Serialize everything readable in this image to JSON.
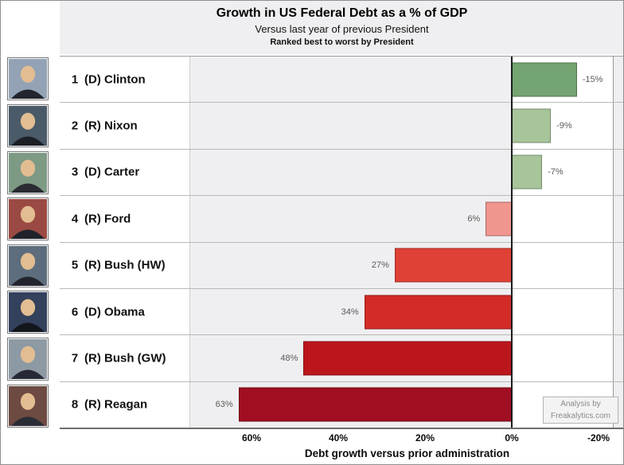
{
  "header": {
    "title": "Growth in US Federal Debt as a % of GDP",
    "subtitle": "Versus last year of previous President",
    "subsubtitle": "Ranked best to worst by President"
  },
  "chart_data": {
    "type": "bar",
    "orientation": "horizontal",
    "title": "Growth in US Federal Debt as a % of GDP",
    "subtitle": "Versus last year of previous President",
    "note": "Ranked best to worst by President",
    "categories": [
      "(D) Clinton",
      "(R) Nixon",
      "(D) Carter",
      "(R) Ford",
      "(R) Bush (HW)",
      "(D) Obama",
      "(R) Bush (GW)",
      "(R) Reagan"
    ],
    "ranks": [
      1,
      2,
      3,
      4,
      5,
      6,
      7,
      8
    ],
    "values": [
      -15,
      -9,
      -7,
      6,
      27,
      34,
      48,
      63
    ],
    "value_labels": [
      "-15%",
      "-9%",
      "-7%",
      "6%",
      "27%",
      "34%",
      "48%",
      "63%"
    ],
    "xlabel": "Debt growth versus prior administration",
    "ylabel": "",
    "x_axis": {
      "ticks": [
        "60%",
        "40%",
        "20%",
        "0%",
        "-20%"
      ],
      "tick_values": [
        60,
        40,
        20,
        0,
        -20
      ],
      "reversed": true,
      "xlim": [
        74,
        -24
      ]
    },
    "legend": "none",
    "grid": "row-separators-only",
    "palette_note": "green = debt reduced vs prior administration, red = debt grew"
  },
  "rows": [
    {
      "rank": "1",
      "name": "(D) Clinton",
      "value": -15,
      "label": "-15%",
      "color": "#74a471",
      "portrait_bg": "#93a3b5",
      "suit": "#23252e"
    },
    {
      "rank": "2",
      "name": "(R) Nixon",
      "value": -9,
      "label": "-9%",
      "color": "#a7c49a",
      "portrait_bg": "#4a5a68",
      "suit": "#1d1f26"
    },
    {
      "rank": "3",
      "name": "(D) Carter",
      "value": -7,
      "label": "-7%",
      "color": "#a7c49a",
      "portrait_bg": "#7d9a84",
      "suit": "#2a2c33"
    },
    {
      "rank": "4",
      "name": "(R) Ford",
      "value": 6,
      "label": "6%",
      "color": "#f0968e",
      "portrait_bg": "#9a4a42",
      "suit": "#20222b"
    },
    {
      "rank": "5",
      "name": "(R) Bush (HW)",
      "value": 27,
      "label": "27%",
      "color": "#e04136",
      "portrait_bg": "#5d6d7d",
      "suit": "#23252e"
    },
    {
      "rank": "6",
      "name": "(D) Obama",
      "value": 34,
      "label": "34%",
      "color": "#d22b28",
      "portrait_bg": "#33415c",
      "suit": "#14161d"
    },
    {
      "rank": "7",
      "name": "(R) Bush (GW)",
      "value": 48,
      "label": "48%",
      "color": "#bc161d",
      "portrait_bg": "#8d9aa4",
      "suit": "#262833"
    },
    {
      "rank": "8",
      "name": "(R) Reagan",
      "value": 63,
      "label": "63%",
      "color": "#a00e22",
      "portrait_bg": "#6d4a42",
      "suit": "#2b2d36"
    }
  ],
  "footer": {
    "credit_line1": "Analysis by",
    "credit_line2": "Freakalytics.com"
  }
}
